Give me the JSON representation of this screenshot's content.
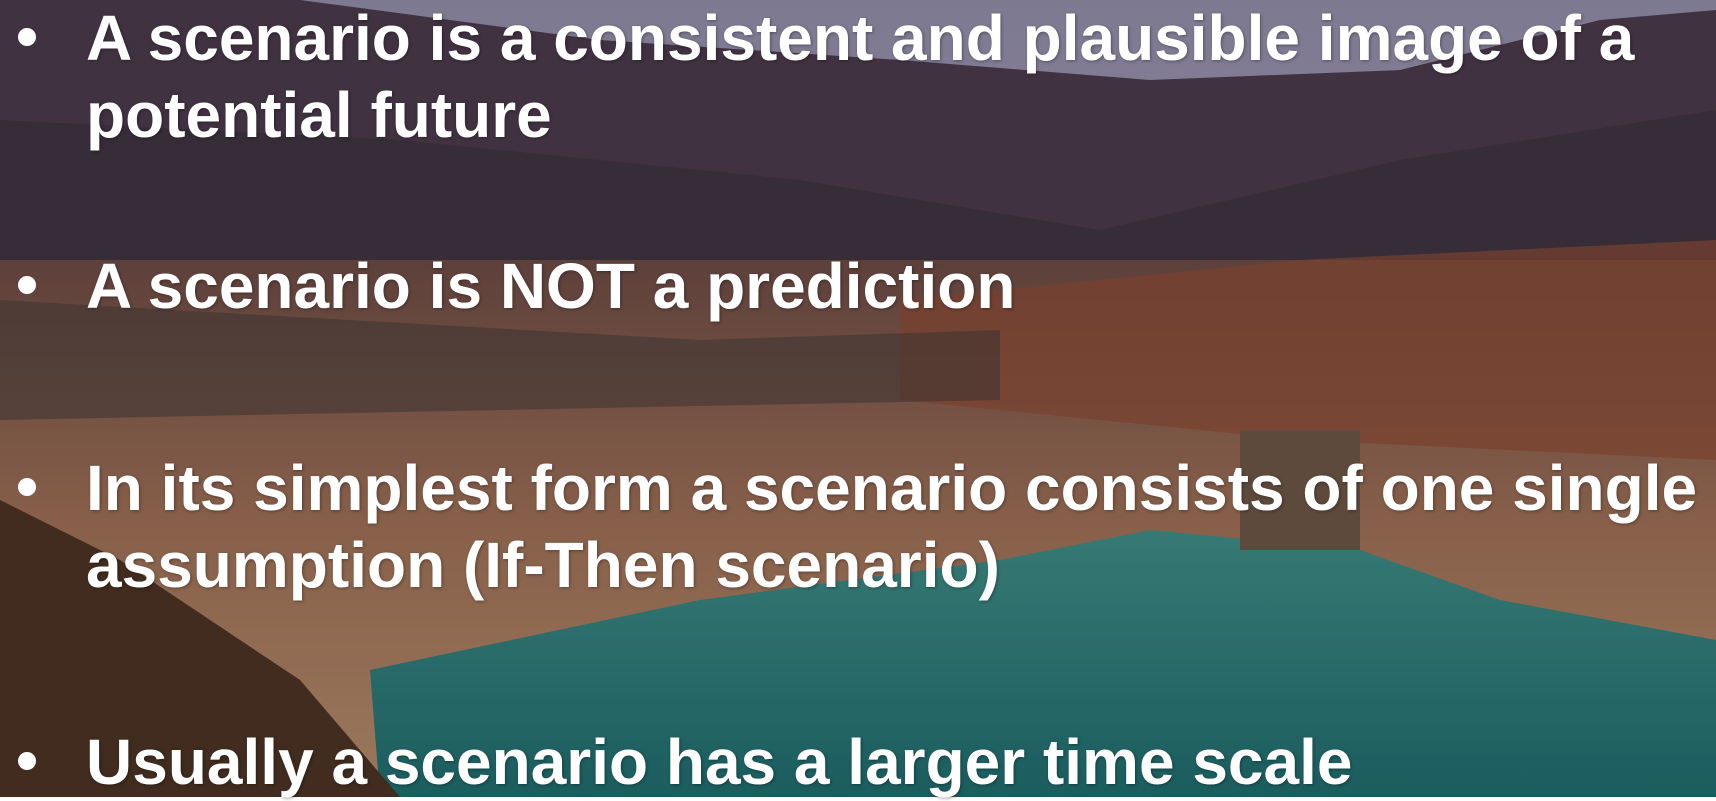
{
  "bullets": [
    [
      "A scenario is a consistent and plausible image of a",
      "potential future"
    ],
    [
      "A scenario is NOT a prediction"
    ],
    [
      "In its simplest form a scenario consists of one single",
      "assumption (If-Then scenario)"
    ],
    [
      "Usually a scenario has a larger time scale"
    ]
  ]
}
